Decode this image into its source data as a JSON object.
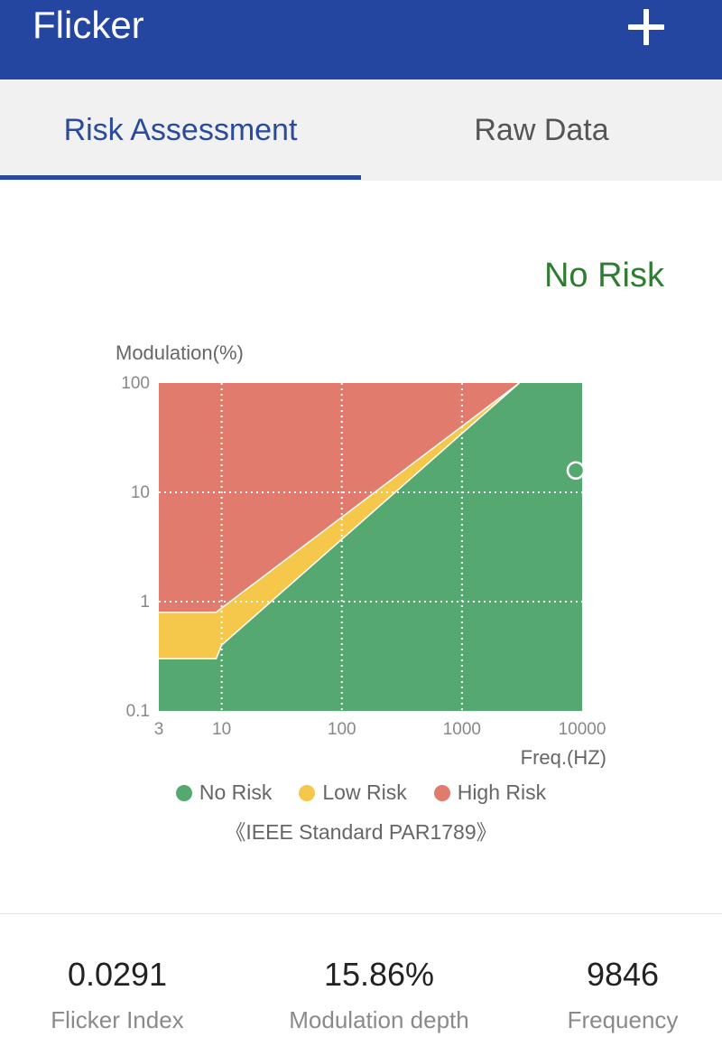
{
  "appbar": {
    "title": "Flicker",
    "add_icon": "plus-icon"
  },
  "tabs": [
    {
      "label": "Risk Assessment",
      "active": true
    },
    {
      "label": "Raw Data",
      "active": false
    }
  ],
  "verdict": {
    "text": "No Risk",
    "color": "#2e7d32"
  },
  "chart_data": {
    "type": "area",
    "ylabel": "Modulation(%)",
    "xlabel": "Freq.(HZ)",
    "x_scale": "log",
    "y_scale": "log",
    "xlim": [
      3,
      10000
    ],
    "ylim": [
      0.1,
      100
    ],
    "x_ticks": [
      "3",
      "10",
      "100",
      "1000",
      "10000"
    ],
    "y_ticks": [
      "100",
      "10",
      "1",
      "0.1"
    ],
    "grid": true,
    "series": [
      {
        "name": "No Risk",
        "color": "#55a86f",
        "boundary": [
          [
            3,
            0.3
          ],
          [
            9,
            0.3
          ],
          [
            10,
            0.4
          ],
          [
            3000,
            100
          ]
        ]
      },
      {
        "name": "Low Risk",
        "color": "#f5c84c",
        "boundary": [
          [
            3,
            0.8
          ],
          [
            9,
            0.8
          ],
          [
            3000,
            100
          ]
        ]
      },
      {
        "name": "High Risk",
        "color": "#e07b6d",
        "boundary": [
          [
            3,
            100
          ],
          [
            10000,
            100
          ]
        ]
      }
    ],
    "measurement": {
      "frequency": 9846,
      "modulation": 15.86
    },
    "legend_position": "bottom",
    "note": "《IEEE Standard PAR1789》"
  },
  "metrics": [
    {
      "value": "0.0291",
      "label": "Flicker Index"
    },
    {
      "value": "15.86%",
      "label": "Modulation depth"
    },
    {
      "value": "9846",
      "label": "Frequency"
    }
  ]
}
